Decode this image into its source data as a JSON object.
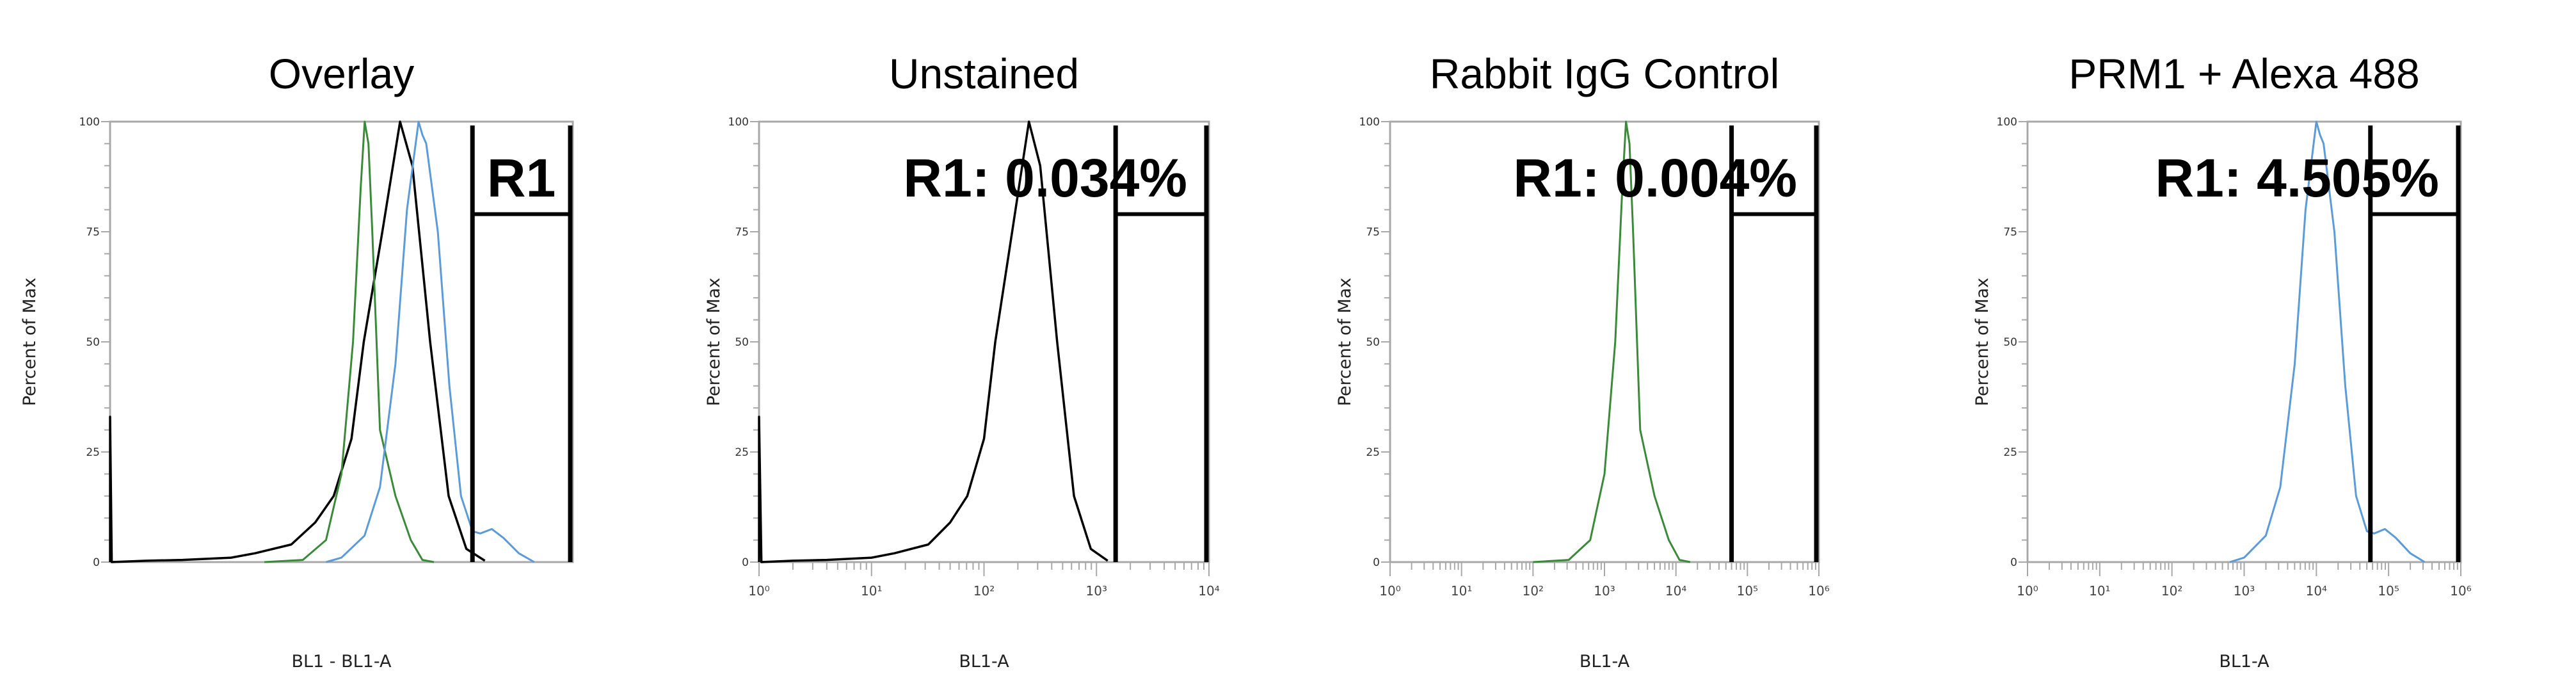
{
  "chart_data": [
    {
      "type": "line",
      "title": "Overlay",
      "xlabel": "BL1 - BL1-A",
      "ylabel": "Percent of Max",
      "xscale": "log",
      "xlim": [
        1,
        1000000
      ],
      "ylim": [
        0,
        100
      ],
      "y_ticks": [
        "0",
        "25",
        "50",
        "75",
        "100"
      ],
      "x_ticks": [],
      "grid": false,
      "series": [
        {
          "color": "#000000",
          "points": [
            [
              1,
              0
            ],
            [
              1,
              33
            ],
            [
              1.05,
              0
            ],
            [
              2.95,
              0.3
            ],
            [
              8.7,
              0.5
            ],
            [
              37,
              1
            ],
            [
              76,
              2
            ],
            [
              224,
              4
            ],
            [
              457,
              9
            ],
            [
              794,
              15
            ],
            [
              1349,
              28
            ],
            [
              1950,
              50
            ],
            [
              3388,
              75
            ],
            [
              5754,
              100
            ],
            [
              8318,
              90
            ],
            [
              14125,
              50
            ],
            [
              24547,
              15
            ],
            [
              41687,
              3
            ],
            [
              72444,
              0.3
            ]
          ]
        },
        {
          "color": "#3a8a3a",
          "points": [
            [
              100,
              0
            ],
            [
              316,
              0.5
            ],
            [
              631,
              5
            ],
            [
              1000,
              20
            ],
            [
              1413,
              50
            ],
            [
              1778,
              85
            ],
            [
              2000,
              100
            ],
            [
              2239,
              95
            ],
            [
              2512,
              75
            ],
            [
              3162,
              30
            ],
            [
              5012,
              15
            ],
            [
              7943,
              5
            ],
            [
              11220,
              0.5
            ],
            [
              15849,
              0
            ]
          ]
        },
        {
          "color": "#5b9bd8",
          "points": [
            [
              631,
              0
            ],
            [
              1000,
              1
            ],
            [
              1995,
              6
            ],
            [
              3162,
              17
            ],
            [
              5012,
              45
            ],
            [
              7079,
              80
            ],
            [
              10000,
              100
            ],
            [
              11220,
              97
            ],
            [
              12589,
              95
            ],
            [
              17783,
              75
            ],
            [
              25119,
              40
            ],
            [
              35481,
              15
            ],
            [
              50119,
              7
            ],
            [
              63096,
              6.5
            ],
            [
              89125,
              7.5
            ],
            [
              125893,
              5.5
            ],
            [
              199526,
              2
            ],
            [
              316228,
              0
            ]
          ]
        }
      ],
      "gate": {
        "name": "R1",
        "label": "R1",
        "x_range": [
          50000,
          1000000
        ],
        "label_box_bottom_percent": 79
      }
    },
    {
      "type": "line",
      "title": "Unstained",
      "xlabel": "BL1-A",
      "ylabel": "Percent of Max",
      "xscale": "log",
      "xlim": [
        1,
        10000
      ],
      "ylim": [
        0,
        100
      ],
      "y_ticks": [
        "0",
        "25",
        "50",
        "75",
        "100"
      ],
      "x_ticks": [
        "10⁰",
        "10¹",
        "10²",
        "10³",
        "10⁴"
      ],
      "grid": false,
      "series": [
        {
          "color": "#000000",
          "points": [
            [
              1,
              0
            ],
            [
              1,
              33
            ],
            [
              1.05,
              0
            ],
            [
              2,
              0.3
            ],
            [
              4,
              0.5
            ],
            [
              10,
              1
            ],
            [
              16,
              2
            ],
            [
              32,
              4
            ],
            [
              50,
              9
            ],
            [
              71,
              15
            ],
            [
              100,
              28
            ],
            [
              126,
              50
            ],
            [
              178,
              75
            ],
            [
              251,
              100
            ],
            [
              316,
              90
            ],
            [
              447,
              50
            ],
            [
              631,
              15
            ],
            [
              891,
              3
            ],
            [
              1259,
              0.3
            ]
          ]
        }
      ],
      "gate": {
        "name": "R1",
        "label": "R1: 0.034%",
        "x_range": [
          1480,
          10000
        ],
        "label_box_bottom_percent": 79
      }
    },
    {
      "type": "line",
      "title": "Rabbit IgG Control",
      "xlabel": "BL1-A",
      "ylabel": "Percent of Max",
      "xscale": "log",
      "xlim": [
        1,
        1000000
      ],
      "ylim": [
        0,
        100
      ],
      "y_ticks": [
        "0",
        "25",
        "50",
        "75",
        "100"
      ],
      "x_ticks": [
        "10⁰",
        "10¹",
        "10²",
        "10³",
        "10⁴",
        "10⁵",
        "10⁶"
      ],
      "grid": false,
      "series": [
        {
          "color": "#3a8a3a",
          "points": [
            [
              100,
              0
            ],
            [
              316,
              0.5
            ],
            [
              631,
              5
            ],
            [
              1000,
              20
            ],
            [
              1413,
              50
            ],
            [
              1778,
              85
            ],
            [
              2000,
              100
            ],
            [
              2239,
              95
            ],
            [
              2512,
              75
            ],
            [
              3162,
              30
            ],
            [
              5012,
              15
            ],
            [
              7943,
              5
            ],
            [
              11220,
              0.5
            ],
            [
              15849,
              0
            ]
          ]
        }
      ],
      "gate": {
        "name": "R1",
        "label": "R1: 0.004%",
        "x_range": [
          60000,
          1000000
        ],
        "label_box_bottom_percent": 79
      }
    },
    {
      "type": "line",
      "title": "PRM1 + Alexa 488",
      "xlabel": "BL1-A",
      "ylabel": "Percent of Max",
      "xscale": "log",
      "xlim": [
        1,
        1000000
      ],
      "ylim": [
        0,
        100
      ],
      "y_ticks": [
        "0",
        "25",
        "50",
        "75",
        "100"
      ],
      "x_ticks": [
        "10⁰",
        "10¹",
        "10²",
        "10³",
        "10⁴",
        "10⁵",
        "10⁶"
      ],
      "grid": false,
      "series": [
        {
          "color": "#5b9bd8",
          "points": [
            [
              631,
              0
            ],
            [
              1000,
              1
            ],
            [
              1995,
              6
            ],
            [
              3162,
              17
            ],
            [
              5012,
              45
            ],
            [
              7079,
              80
            ],
            [
              10000,
              100
            ],
            [
              11220,
              97
            ],
            [
              12589,
              95
            ],
            [
              17783,
              75
            ],
            [
              25119,
              40
            ],
            [
              35481,
              15
            ],
            [
              50119,
              7
            ],
            [
              63096,
              6.5
            ],
            [
              89125,
              7.5
            ],
            [
              125893,
              5.5
            ],
            [
              199526,
              2
            ],
            [
              316228,
              0
            ]
          ]
        }
      ],
      "gate": {
        "name": "R1",
        "label": "R1: 4.505%",
        "x_range": [
          56000,
          1000000
        ],
        "label_box_bottom_percent": 79
      }
    }
  ]
}
